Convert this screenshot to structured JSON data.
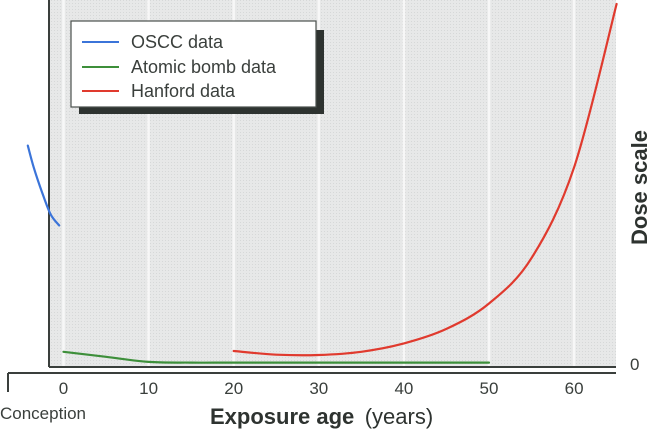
{
  "chart_data": {
    "type": "line",
    "title": "",
    "xlabel": "Exposure age",
    "xlabel_unit": "(years)",
    "ylabel": "Dose scale",
    "x_ticks": [
      0,
      10,
      20,
      30,
      40,
      50,
      60
    ],
    "x_tick_labels": [
      "0",
      "10",
      "20",
      "30",
      "40",
      "50",
      "60"
    ],
    "x_origin_label": "Conception",
    "y_ticks": [
      0
    ],
    "y_tick_labels": [
      "0"
    ],
    "xlim": [
      -7,
      65
    ],
    "ylim": [
      0,
      100
    ],
    "grid": {
      "vertical": true,
      "horizontal": false
    },
    "legend_position": "upper-left",
    "series": [
      {
        "name": "OSCC data",
        "color": "#3b74d9",
        "x": [
          -4.2,
          -3.5,
          -2.5,
          -1.5,
          -0.5
        ],
        "y": [
          61,
          55,
          48,
          42,
          39
        ]
      },
      {
        "name": "Atomic bomb data",
        "color": "#3d8f3a",
        "x": [
          0,
          5,
          10,
          15,
          20,
          30,
          40,
          50
        ],
        "y": [
          4.2,
          2.8,
          1.4,
          1.2,
          1.2,
          1.2,
          1.2,
          1.2
        ]
      },
      {
        "name": "Hanford data",
        "color": "#e03a2e",
        "x": [
          20,
          25,
          30,
          35,
          40,
          45,
          50,
          55,
          60,
          65
        ],
        "y": [
          4.4,
          3.4,
          3.3,
          4.2,
          6.5,
          10.5,
          17.5,
          30,
          55,
          100
        ]
      }
    ]
  },
  "legend": {
    "items": [
      {
        "label": "OSCC data",
        "color": "#3b74d9"
      },
      {
        "label": "Atomic bomb data",
        "color": "#3d8f3a"
      },
      {
        "label": "Hanford data",
        "color": "#e03a2e"
      }
    ]
  },
  "axes": {
    "x_label_bold": "Exposure age",
    "x_label_unit": "(years)",
    "y_label": "Dose scale",
    "y_zero": "0",
    "conception": "Conception",
    "ticks": [
      "0",
      "10",
      "20",
      "30",
      "40",
      "50",
      "60"
    ]
  }
}
